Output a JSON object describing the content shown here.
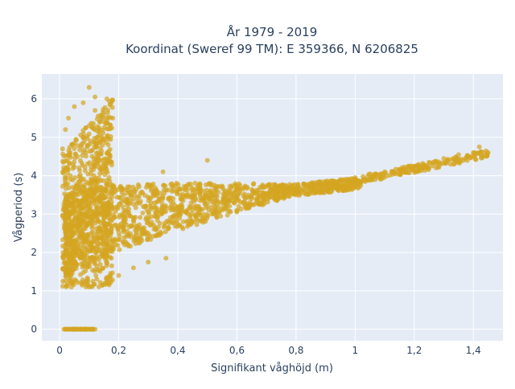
{
  "chart_data": {
    "type": "scatter",
    "title_line1": "År 1979 - 2019",
    "title_line2": "Koordinat (Sweref 99 TM): E 359366, N 6206825",
    "xlabel": "Signifikant våghöjd (m)",
    "ylabel": "Vågperiod (s)",
    "xlim": [
      -0.06,
      1.5
    ],
    "ylim": [
      -0.3,
      6.65
    ],
    "x_ticks": [
      0,
      0.2,
      0.4,
      0.6,
      0.8,
      1,
      1.2,
      1.4
    ],
    "x_tick_labels": [
      "0",
      "0,2",
      "0,4",
      "0,6",
      "0,8",
      "1",
      "1,2",
      "1,4"
    ],
    "y_ticks": [
      0,
      1,
      2,
      3,
      4,
      5,
      6
    ],
    "y_tick_labels": [
      "0",
      "1",
      "2",
      "3",
      "4",
      "5",
      "6"
    ],
    "grid": true,
    "marker_color": "#D4A521",
    "plot_bg": "#E5ECF6",
    "points_sample": [
      [
        0.02,
        0
      ],
      [
        0.05,
        0
      ],
      [
        0.08,
        0
      ],
      [
        0.11,
        0
      ],
      [
        0.12,
        0
      ],
      [
        0.01,
        4.7
      ],
      [
        0.02,
        5.2
      ],
      [
        0.03,
        5.5
      ],
      [
        0.05,
        5.8
      ],
      [
        0.08,
        5.9
      ],
      [
        0.1,
        6.3
      ],
      [
        0.12,
        6.05
      ],
      [
        0.16,
        6.0
      ],
      [
        0.18,
        5.5
      ],
      [
        0.02,
        2.8
      ],
      [
        0.04,
        3.5
      ],
      [
        0.06,
        4.5
      ],
      [
        0.08,
        5.0
      ],
      [
        0.1,
        5.3
      ],
      [
        0.12,
        5.7
      ],
      [
        0.02,
        1.5
      ],
      [
        0.04,
        1.1
      ],
      [
        0.1,
        1.1
      ],
      [
        0.16,
        1.2
      ],
      [
        0.2,
        1.4
      ],
      [
        0.25,
        1.6
      ],
      [
        0.3,
        1.75
      ],
      [
        0.36,
        1.85
      ],
      [
        0.05,
        2.0
      ],
      [
        0.1,
        2.3
      ],
      [
        0.15,
        2.5
      ],
      [
        0.2,
        2.7
      ],
      [
        0.25,
        2.9
      ],
      [
        0.3,
        3.05
      ],
      [
        0.35,
        3.15
      ],
      [
        0.4,
        3.0
      ],
      [
        0.45,
        3.1
      ],
      [
        0.5,
        3.2
      ],
      [
        0.55,
        3.3
      ],
      [
        0.6,
        3.35
      ],
      [
        0.65,
        3.45
      ],
      [
        0.7,
        3.5
      ],
      [
        0.75,
        3.6
      ],
      [
        0.8,
        3.65
      ],
      [
        0.85,
        3.75
      ],
      [
        0.9,
        3.85
      ],
      [
        0.95,
        3.9
      ],
      [
        1.0,
        3.95
      ],
      [
        1.05,
        4.05
      ],
      [
        1.1,
        4.1
      ],
      [
        1.15,
        4.15
      ],
      [
        1.2,
        4.25
      ],
      [
        1.25,
        4.35
      ],
      [
        1.3,
        4.45
      ],
      [
        1.35,
        4.55
      ],
      [
        1.4,
        4.6
      ],
      [
        1.42,
        4.75
      ],
      [
        1.45,
        4.6
      ],
      [
        0.5,
        4.4
      ],
      [
        0.35,
        4.1
      ],
      [
        0.26,
        3.65
      ],
      [
        0.17,
        3.4
      ],
      [
        0.22,
        2.2
      ],
      [
        0.3,
        2.5
      ]
    ]
  }
}
